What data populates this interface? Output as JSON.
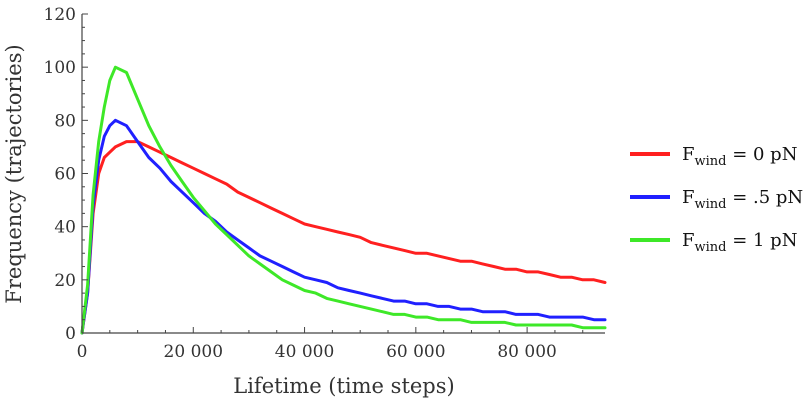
{
  "chart_data": {
    "type": "line",
    "title": "",
    "xlabel": "Lifetime (time steps)",
    "ylabel": "Frequency (trajectories)",
    "xlim": [
      0,
      94000
    ],
    "ylim": [
      0,
      120
    ],
    "xticks": [
      0,
      20000,
      40000,
      60000,
      80000
    ],
    "xtick_labels": [
      "0",
      "20 000",
      "40 000",
      "60 000",
      "80 000"
    ],
    "yticks": [
      0,
      20,
      40,
      60,
      80,
      100,
      120
    ],
    "ytick_labels": [
      "0",
      "20",
      "40",
      "60",
      "80",
      "100",
      "120"
    ],
    "grid": false,
    "legend_position": "right",
    "series": [
      {
        "name": "Fwind = 0 pN",
        "legend": {
          "base": "F",
          "sub": "wind",
          "rest": " = 0 pN"
        },
        "color": "#ff2020",
        "x": [
          0,
          1000,
          2000,
          3000,
          4000,
          5000,
          6000,
          8000,
          10000,
          12000,
          14000,
          16000,
          18000,
          20000,
          22000,
          24000,
          26000,
          28000,
          30000,
          32000,
          34000,
          36000,
          38000,
          40000,
          42000,
          44000,
          46000,
          48000,
          50000,
          52000,
          54000,
          56000,
          58000,
          60000,
          62000,
          64000,
          66000,
          68000,
          70000,
          72000,
          74000,
          76000,
          78000,
          80000,
          82000,
          84000,
          86000,
          88000,
          90000,
          92000,
          94000
        ],
        "values": [
          0,
          15,
          45,
          60,
          66,
          68,
          70,
          72,
          72,
          70,
          68,
          66,
          64,
          62,
          60,
          58,
          56,
          53,
          51,
          49,
          47,
          45,
          43,
          41,
          40,
          39,
          38,
          37,
          36,
          34,
          33,
          32,
          31,
          30,
          30,
          29,
          28,
          27,
          27,
          26,
          25,
          24,
          24,
          23,
          23,
          22,
          21,
          21,
          20,
          20,
          19
        ]
      },
      {
        "name": "Fwind = .5 pN",
        "legend": {
          "base": "F",
          "sub": "wind",
          "rest": " = .5 pN"
        },
        "color": "#2020ff",
        "x": [
          0,
          1000,
          2000,
          3000,
          4000,
          5000,
          6000,
          8000,
          10000,
          12000,
          14000,
          16000,
          18000,
          20000,
          22000,
          24000,
          26000,
          28000,
          30000,
          32000,
          34000,
          36000,
          38000,
          40000,
          42000,
          44000,
          46000,
          48000,
          50000,
          52000,
          54000,
          56000,
          58000,
          60000,
          62000,
          64000,
          66000,
          68000,
          70000,
          72000,
          74000,
          76000,
          78000,
          80000,
          82000,
          84000,
          86000,
          88000,
          90000,
          92000,
          94000
        ],
        "values": [
          0,
          15,
          48,
          65,
          74,
          78,
          80,
          78,
          72,
          66,
          62,
          57,
          53,
          49,
          45,
          42,
          38,
          35,
          32,
          29,
          27,
          25,
          23,
          21,
          20,
          19,
          17,
          16,
          15,
          14,
          13,
          12,
          12,
          11,
          11,
          10,
          10,
          9,
          9,
          8,
          8,
          8,
          7,
          7,
          7,
          6,
          6,
          6,
          6,
          5,
          5
        ]
      },
      {
        "name": "Fwind = 1 pN",
        "legend": {
          "base": "F",
          "sub": "wind",
          "rest": " = 1 pN"
        },
        "color": "#3ee828",
        "x": [
          0,
          1000,
          2000,
          3000,
          4000,
          5000,
          6000,
          8000,
          10000,
          12000,
          14000,
          16000,
          18000,
          20000,
          22000,
          24000,
          26000,
          28000,
          30000,
          32000,
          34000,
          36000,
          38000,
          40000,
          42000,
          44000,
          46000,
          48000,
          50000,
          52000,
          54000,
          56000,
          58000,
          60000,
          62000,
          64000,
          66000,
          68000,
          70000,
          72000,
          74000,
          76000,
          78000,
          80000,
          82000,
          84000,
          86000,
          88000,
          90000,
          92000,
          94000
        ],
        "values": [
          0,
          18,
          52,
          72,
          85,
          95,
          100,
          98,
          88,
          78,
          70,
          63,
          57,
          51,
          46,
          41,
          37,
          33,
          29,
          26,
          23,
          20,
          18,
          16,
          15,
          13,
          12,
          11,
          10,
          9,
          8,
          7,
          7,
          6,
          6,
          5,
          5,
          5,
          4,
          4,
          4,
          4,
          3,
          3,
          3,
          3,
          3,
          3,
          2,
          2,
          2
        ]
      }
    ]
  }
}
